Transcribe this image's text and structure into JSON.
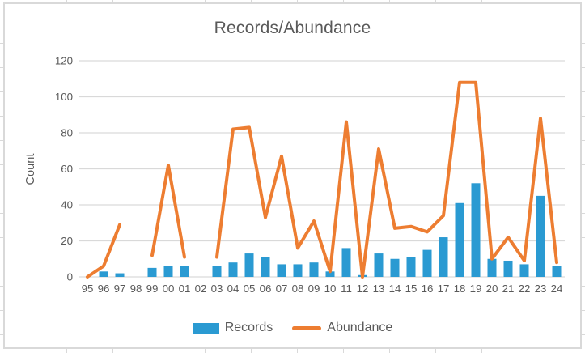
{
  "chart": {
    "title": "Records/Abundance"
  },
  "chart_data": {
    "type": "combo",
    "title": "Records/Abundance",
    "xlabel": "",
    "ylabel": "Count",
    "categories": [
      "95",
      "96",
      "97",
      "98",
      "99",
      "00",
      "01",
      "02",
      "03",
      "04",
      "05",
      "06",
      "07",
      "08",
      "09",
      "10",
      "11",
      "12",
      "13",
      "14",
      "15",
      "16",
      "17",
      "18",
      "19",
      "20",
      "21",
      "22",
      "23",
      "24"
    ],
    "series": [
      {
        "name": "Records",
        "type": "bar",
        "color": "#2a9ad2",
        "values": [
          0,
          3,
          2,
          0,
          5,
          6,
          6,
          0,
          6,
          8,
          13,
          11,
          7,
          7,
          8,
          3,
          16,
          1,
          13,
          10,
          11,
          15,
          22,
          41,
          52,
          10,
          9,
          7,
          45,
          6
        ]
      },
      {
        "name": "Abundance",
        "type": "line",
        "color": "#ed7d31",
        "values": [
          0,
          6,
          29,
          null,
          12,
          62,
          11,
          null,
          11,
          82,
          83,
          33,
          67,
          16,
          31,
          3,
          86,
          0,
          71,
          27,
          28,
          25,
          34,
          108,
          108,
          10,
          22,
          9,
          88,
          8
        ]
      }
    ],
    "ylim": [
      0,
      120
    ],
    "yticks": [
      0,
      20,
      40,
      60,
      80,
      100,
      120
    ],
    "grid": true,
    "legend_position": "bottom",
    "colors": {
      "text": "#595959",
      "gridline": "#d9d9d9",
      "axis_line": "#d9d9d9",
      "chart_border": "#d9d9d9"
    }
  }
}
